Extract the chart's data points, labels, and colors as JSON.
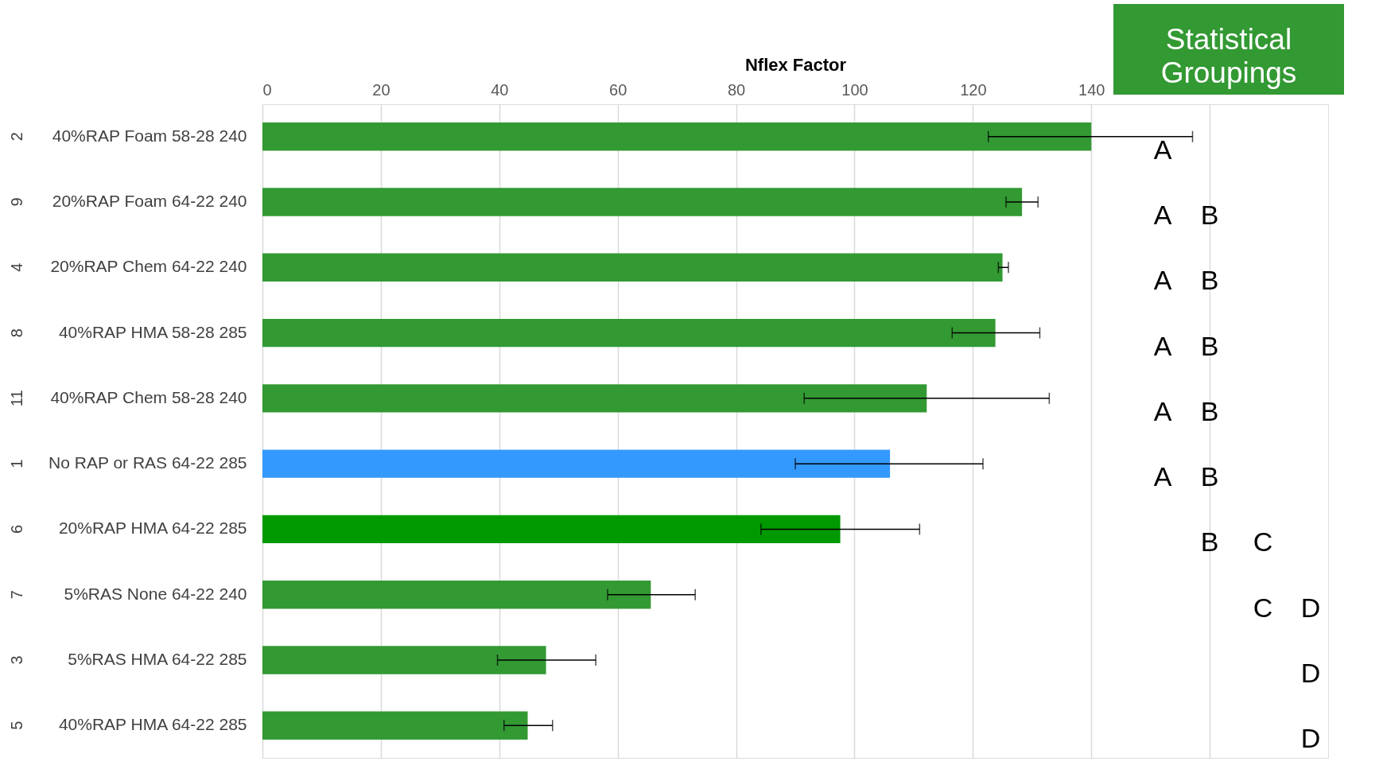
{
  "chart_data": {
    "type": "bar",
    "orientation": "horizontal",
    "xlabel": "Nflex Factor",
    "categories": [
      "40%RAP Foam 58-28 240",
      "20%RAP Foam 64-22 240",
      "20%RAP Chem 64-22 240",
      "40%RAP HMA 58-28 285",
      "40%RAP Chem 58-28 240",
      "No RAP or RAS 64-22 285",
      "20%RAP HMA 64-22 285",
      "5%RAS None 64-22 240",
      "5%RAS HMA 64-22 285",
      "40%RAP HMA 64-22 285"
    ],
    "values": [
      140,
      128.3,
      125,
      123.8,
      112.2,
      106,
      97.6,
      65.6,
      47.9,
      44.8
    ],
    "colors": [
      "#339933",
      "#339933",
      "#339933",
      "#339933",
      "#339933",
      "#3399ff",
      "#009900",
      "#339933",
      "#339933",
      "#339933"
    ],
    "errors": [
      [
        122.6,
        157.1
      ],
      [
        125.6,
        131
      ],
      [
        124.3,
        126
      ],
      [
        116.5,
        131.3
      ],
      [
        91.5,
        132.9
      ],
      [
        90,
        121.7
      ],
      [
        84.2,
        111
      ],
      [
        58.3,
        73.1
      ],
      [
        39.7,
        56.3
      ],
      [
        40.8,
        49
      ]
    ],
    "xlim": [
      0,
      180
    ],
    "xticks": [
      0,
      20,
      40,
      60,
      80,
      100,
      120,
      140,
      {
        "value": 160,
        "label": null
      }
    ],
    "grid": "x",
    "annotations": [
      "Statistical\nGroupings",
      "2",
      "9",
      "4",
      "8",
      "11",
      "1",
      "6",
      "7",
      "3",
      "5",
      "A",
      "A",
      "B",
      "A",
      "B",
      "A",
      "B",
      "A",
      "B",
      "A",
      "B",
      "B",
      "C",
      "C",
      "D",
      "D",
      "D"
    ]
  }
}
